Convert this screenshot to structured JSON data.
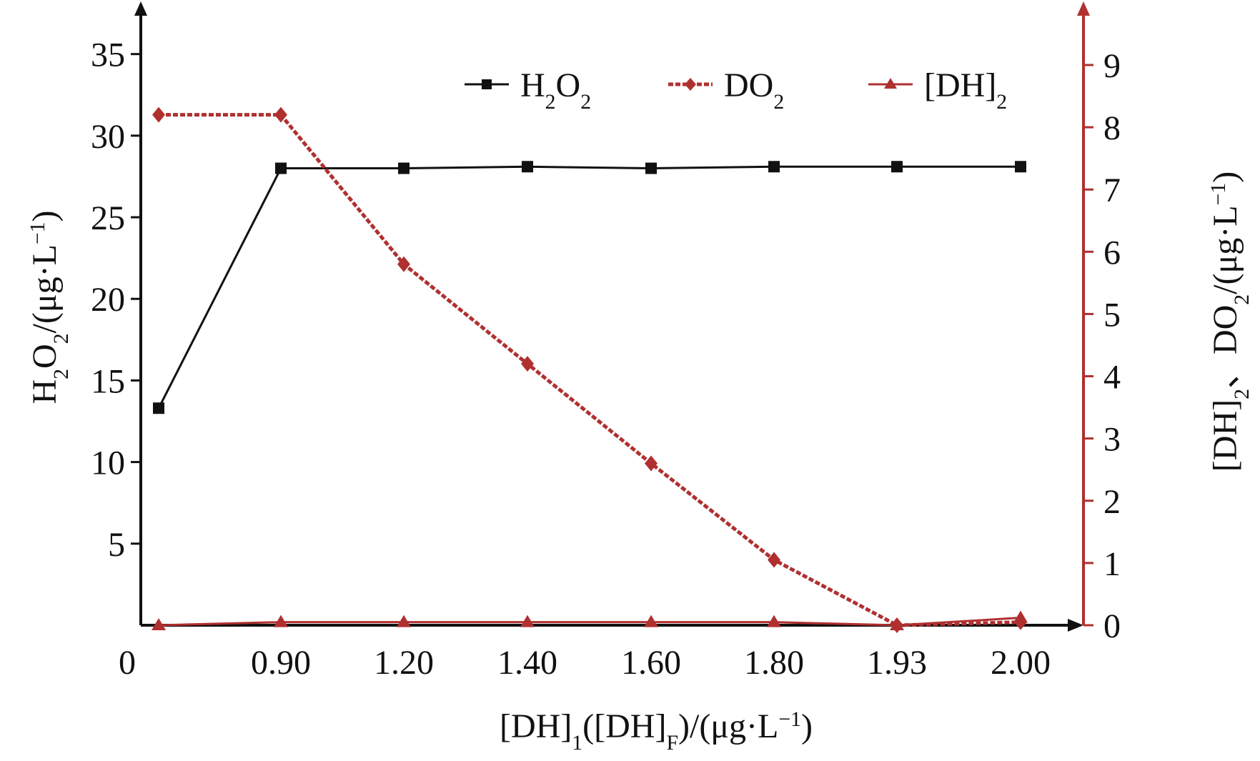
{
  "chart_data": {
    "type": "line",
    "categories": [
      "0",
      "0.90",
      "1.20",
      "1.40",
      "1.60",
      "1.80",
      "1.93",
      "2.00"
    ],
    "xlabel": {
      "base": "[DH]",
      "sub1": "1",
      "mid": "([DH]",
      "sub2": "F",
      "tail": ")/(μg·L",
      "sup": "−1",
      "end": ")"
    },
    "y_left": {
      "label": {
        "a": "H",
        "sub1": "2",
        "b": "O",
        "sub2": "2",
        "c": "/(μg·L",
        "sup": "−1",
        "d": ")"
      },
      "range": [
        0,
        37
      ],
      "ticks": [
        5,
        10,
        15,
        20,
        25,
        30,
        35
      ],
      "tick_labels": [
        "5",
        "10",
        "15",
        "20",
        "25",
        "30",
        "35"
      ]
    },
    "y_right": {
      "label": {
        "a": "[DH]",
        "sub1": "2",
        "b": "、DO",
        "sub2": "2",
        "c": "/(μg·L",
        "sup": "−1",
        "d": ")"
      },
      "range": [
        0,
        9.7
      ],
      "ticks": [
        0,
        1,
        2,
        3,
        4,
        5,
        6,
        7,
        8,
        9
      ],
      "tick_labels": [
        "0",
        "1",
        "2",
        "3",
        "4",
        "5",
        "6",
        "7",
        "8",
        "9"
      ]
    },
    "series": [
      {
        "name": "H2O2",
        "legend": {
          "a": "H",
          "sub1": "2",
          "b": "O",
          "sub2": "2"
        },
        "axis": "left",
        "color": "#111111",
        "marker": "square",
        "style": "solid",
        "values": [
          13.3,
          28.0,
          28.0,
          28.1,
          28.0,
          28.1,
          28.1,
          28.1
        ]
      },
      {
        "name": "DO2",
        "legend": {
          "a": "DO",
          "sub1": "2"
        },
        "axis": "right",
        "color": "#b03030",
        "marker": "diamond",
        "style": "dashed",
        "values": [
          8.2,
          8.2,
          5.8,
          4.2,
          2.6,
          1.05,
          0.0,
          0.05
        ]
      },
      {
        "name": "[DH]2",
        "legend": {
          "a": "[DH]",
          "sub1": "2"
        },
        "axis": "right",
        "color": "#b03030",
        "marker": "triangle",
        "style": "solid",
        "values": [
          0.0,
          0.05,
          0.05,
          0.05,
          0.05,
          0.05,
          0.0,
          0.12
        ]
      }
    ],
    "legend_position": "top-right",
    "grid": false
  }
}
